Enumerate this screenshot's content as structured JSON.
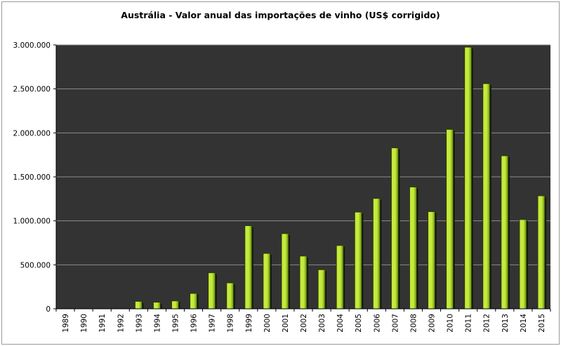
{
  "chart_data": {
    "type": "bar",
    "title": "Austrália - Valor anual das importações de vinho (US$ corrigido)",
    "xlabel": "",
    "ylabel": "",
    "categories": [
      "1989",
      "1990",
      "1991",
      "1992",
      "1993",
      "1994",
      "1995",
      "1996",
      "1997",
      "1998",
      "1999",
      "2000",
      "2001",
      "2002",
      "2003",
      "2004",
      "2005",
      "2006",
      "2007",
      "2008",
      "2009",
      "2010",
      "2011",
      "2012",
      "2013",
      "2014",
      "2015"
    ],
    "values": [
      0,
      0,
      0,
      0,
      85000,
      75000,
      90000,
      175000,
      410000,
      295000,
      945000,
      630000,
      855000,
      600000,
      445000,
      720000,
      1100000,
      1255000,
      1830000,
      1385000,
      1105000,
      2040000,
      2975000,
      2560000,
      1740000,
      1015000,
      1285000
    ],
    "ylim": [
      0,
      3000000
    ],
    "yticks": [
      0,
      500000,
      1000000,
      1500000,
      2000000,
      2500000,
      3000000
    ],
    "ytick_labels": [
      "0",
      "500.000",
      "1.000.000",
      "1.500.000",
      "2.000.000",
      "2.500.000",
      "3.000.000"
    ],
    "grid": true,
    "legend": "none",
    "colors": {
      "plot_background": "#333333",
      "gridline": "#8c8c8c",
      "bar_light": "#c6ea3c",
      "bar_dark": "#5e8e08",
      "bar_outline": "#2c3d00",
      "bar_shadow": "#111111"
    }
  }
}
